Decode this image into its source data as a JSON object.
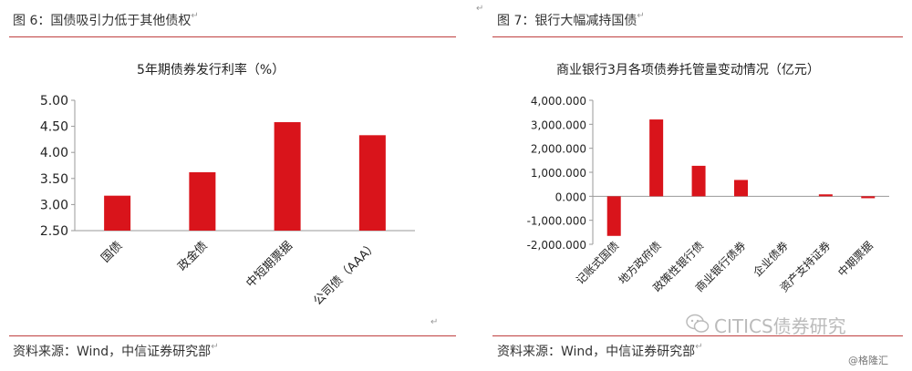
{
  "left_panel": {
    "caption": "图 6：国债吸引力低于其他债权",
    "source": "资料来源：Wind，中信证券研究部"
  },
  "right_panel": {
    "caption": "图 7：银行大幅减持国债",
    "source": "资料来源：Wind，中信证券研究部"
  },
  "paragraph_mark": "↵",
  "watermark": {
    "brand": "CITICS债券研究",
    "credit": "@格隆汇"
  },
  "colors": {
    "bar": "#d9141b",
    "rule": "#c04040",
    "axis": "#999999"
  },
  "chart_data": [
    {
      "type": "bar",
      "title": "5年期债券发行利率（%）",
      "categories": [
        "国债",
        "政金债",
        "中短期票据",
        "公司债（AAA）"
      ],
      "values": [
        3.17,
        3.62,
        4.58,
        4.33
      ],
      "ylim": [
        2.5,
        5.0
      ],
      "yticks": [
        2.5,
        3.0,
        3.5,
        4.0,
        4.5,
        5.0
      ],
      "ytick_labels": [
        "2.50",
        "3.00",
        "3.50",
        "4.00",
        "4.50",
        "5.00"
      ],
      "grid": false,
      "legend": "none"
    },
    {
      "type": "bar",
      "title": "商业银行3月各项债券托管量变动情况（亿元）",
      "categories": [
        "记账式国债",
        "地方政府债",
        "政策性银行债",
        "商业银行债券",
        "企业债券",
        "资产支持证券",
        "中期票据"
      ],
      "values": [
        -1650,
        3200,
        1270,
        680,
        0,
        80,
        -80
      ],
      "ylim": [
        -2000,
        4000
      ],
      "yticks": [
        -2000,
        -1000,
        0,
        1000,
        2000,
        3000,
        4000
      ],
      "ytick_labels": [
        "-2,000.000",
        "-1,000.000",
        "0.000",
        "1,000.000",
        "2,000.000",
        "3,000.000",
        "4,000.000"
      ],
      "grid": false,
      "legend": "none"
    }
  ]
}
